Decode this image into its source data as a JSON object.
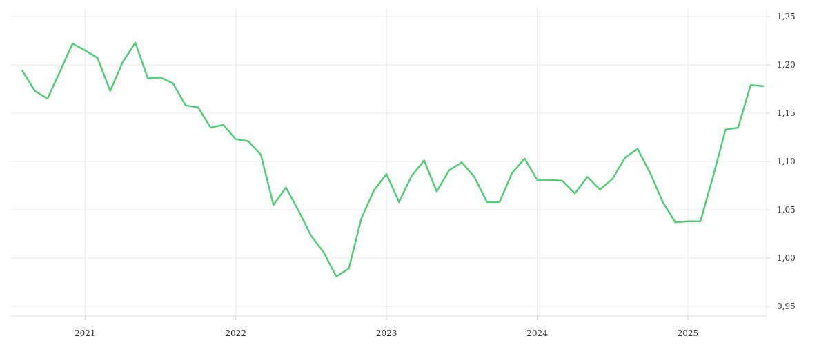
{
  "chart_data": {
    "type": "line",
    "title": "",
    "xlabel": "",
    "ylabel": "",
    "x_ticks": [
      "2021",
      "2022",
      "2023",
      "2024",
      "2025"
    ],
    "y_ticks": [
      "0,95",
      "1,00",
      "1,05",
      "1,10",
      "1,15",
      "1,20",
      "1,25"
    ],
    "ylim": [
      0.94,
      1.25
    ],
    "grid": true,
    "line_color": "#4ecf74",
    "x": [
      "2020-08",
      "2020-09",
      "2020-10",
      "2020-11",
      "2020-12",
      "2021-01",
      "2021-02",
      "2021-03",
      "2021-04",
      "2021-05",
      "2021-06",
      "2021-07",
      "2021-08",
      "2021-09",
      "2021-10",
      "2021-11",
      "2021-12",
      "2022-01",
      "2022-02",
      "2022-03",
      "2022-04",
      "2022-05",
      "2022-06",
      "2022-07",
      "2022-08",
      "2022-09",
      "2022-10",
      "2022-11",
      "2022-12",
      "2023-01",
      "2023-02",
      "2023-03",
      "2023-04",
      "2023-05",
      "2023-06",
      "2023-07",
      "2023-08",
      "2023-09",
      "2023-10",
      "2023-11",
      "2023-12",
      "2024-01",
      "2024-02",
      "2024-03",
      "2024-04",
      "2024-05",
      "2024-06",
      "2024-07",
      "2024-08",
      "2024-09",
      "2024-10",
      "2024-11",
      "2024-12",
      "2025-01",
      "2025-02",
      "2025-03",
      "2025-04",
      "2025-05",
      "2025-06",
      "2025-07"
    ],
    "values": [
      1.194,
      1.173,
      1.165,
      1.193,
      1.222,
      1.215,
      1.207,
      1.173,
      1.203,
      1.223,
      1.186,
      1.187,
      1.181,
      1.158,
      1.156,
      1.135,
      1.138,
      1.123,
      1.121,
      1.107,
      1.055,
      1.073,
      1.049,
      1.023,
      1.006,
      0.981,
      0.989,
      1.041,
      1.07,
      1.087,
      1.058,
      1.085,
      1.101,
      1.069,
      1.091,
      1.099,
      1.084,
      1.058,
      1.058,
      1.088,
      1.103,
      1.081,
      1.081,
      1.08,
      1.067,
      1.084,
      1.071,
      1.082,
      1.104,
      1.113,
      1.088,
      1.058,
      1.037,
      1.038,
      1.038,
      1.084,
      1.133,
      1.135,
      1.179,
      1.178
    ]
  }
}
